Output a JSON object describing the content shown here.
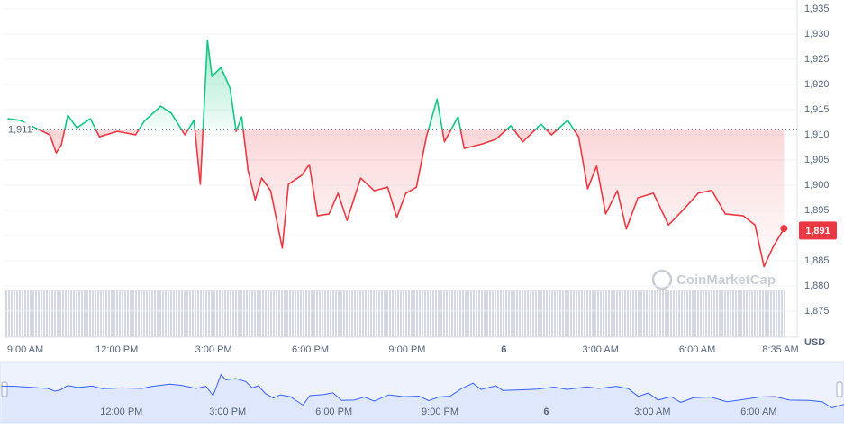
{
  "chart_data": {
    "type": "line",
    "x": [
      -0.39,
      0,
      0.5,
      0.92,
      1.12,
      1.28,
      1.48,
      1.76,
      2.18,
      2.46,
      3.02,
      3.58,
      3.85,
      4.36,
      4.69,
      5.11,
      5.39,
      5.59,
      5.81,
      5.95,
      6.23,
      6.51,
      6.7,
      6.87,
      7.07,
      7.29,
      7.49,
      7.77,
      8.13,
      8.32,
      8.74,
      8.97,
      9.22,
      9.58,
      9.86,
      10.14,
      10.56,
      10.98,
      11.4,
      11.68,
      11.96,
      12.29,
      12.6,
      12.93,
      13.16,
      13.58,
      13.77,
      14.33,
      14.75,
      15.22,
      15.59,
      16.15,
      16.48,
      16.98,
      17.32,
      17.6,
      17.88,
      18.16,
      18.52,
      18.8,
      19.16,
      19.64,
      20.11,
      20.61,
      21.03,
      21.45,
      21.87,
      22.43,
      22.79,
      23.07,
      23.35,
      23.69
    ],
    "values": [
      1913.2,
      1912.9,
      1911.3,
      1910,
      1906.4,
      1908,
      1913.9,
      1911.4,
      1913.2,
      1909.6,
      1910.7,
      1910,
      1912.7,
      1915.7,
      1914.3,
      1910,
      1912.9,
      1900.2,
      1928.8,
      1921.6,
      1923.4,
      1919.3,
      1910.7,
      1913.6,
      1902.9,
      1897.1,
      1901.4,
      1898.9,
      1887.5,
      1900.2,
      1902,
      1904.1,
      1893.9,
      1894.3,
      1898.4,
      1893,
      1901.4,
      1898.9,
      1899.6,
      1893.6,
      1898.4,
      1899.6,
      1909.6,
      1917.1,
      1908.6,
      1913.6,
      1907.3,
      1908.2,
      1909.1,
      1911.8,
      1908.6,
      1912.1,
      1910,
      1912.9,
      1909.6,
      1899.3,
      1903.8,
      1894.3,
      1898.9,
      1891.3,
      1897.5,
      1898.4,
      1892.1,
      1895.4,
      1898.4,
      1899,
      1894.3,
      1893.9,
      1892.1,
      1883.8,
      1887.7,
      1891.4
    ],
    "up_color": "#16c784",
    "down_color": "#ea3943",
    "baseline": {
      "value": 1911,
      "label": "1,911"
    },
    "price_tag": {
      "value": 1891,
      "label": "1,891"
    },
    "xlim": [
      -0.4,
      24
    ],
    "xticks": [
      {
        "value": 0,
        "label": "9:00 AM"
      },
      {
        "value": 3,
        "label": "12:00 PM"
      },
      {
        "value": 6,
        "label": "3:00 PM"
      },
      {
        "value": 9,
        "label": "6:00 PM"
      },
      {
        "value": 12,
        "label": "9:00 PM"
      },
      {
        "value": 15,
        "label": "6"
      },
      {
        "value": 18,
        "label": "3:00 AM"
      },
      {
        "value": 21,
        "label": "6:00 AM"
      },
      {
        "value": 23.58,
        "label": "8:35 AM"
      }
    ],
    "ylim": [
      1869.8,
      1936.8
    ],
    "yticks": [
      {
        "value": 1875,
        "label": "1,875"
      },
      {
        "value": 1880,
        "label": "1,880"
      },
      {
        "value": 1885,
        "label": "1,885"
      },
      {
        "value": 1890,
        "label": "1,890"
      },
      {
        "value": 1895,
        "label": "1,895"
      },
      {
        "value": 1900,
        "label": "1,900"
      },
      {
        "value": 1905,
        "label": "1,905"
      },
      {
        "value": 1910,
        "label": "1,910"
      },
      {
        "value": 1915,
        "label": "1,915"
      },
      {
        "value": 1920,
        "label": "1,920"
      },
      {
        "value": 1925,
        "label": "1,925"
      },
      {
        "value": 1930,
        "label": "1,930"
      },
      {
        "value": 1935,
        "label": "1,935"
      }
    ],
    "grid": true,
    "unit_label": "USD",
    "watermark": "CoinMarketCap",
    "navigator": {
      "color": "#3861fb",
      "xlim": [
        -0.43,
        23.41
      ],
      "xticks": [
        {
          "value": 3,
          "label": "12:00 PM"
        },
        {
          "value": 6,
          "label": "3:00 PM"
        },
        {
          "value": 9,
          "label": "6:00 PM"
        },
        {
          "value": 12,
          "label": "9:00 PM"
        },
        {
          "value": 15,
          "label": "6"
        },
        {
          "value": 18,
          "label": "3:00 AM"
        },
        {
          "value": 21,
          "label": "6:00 AM"
        }
      ]
    }
  }
}
